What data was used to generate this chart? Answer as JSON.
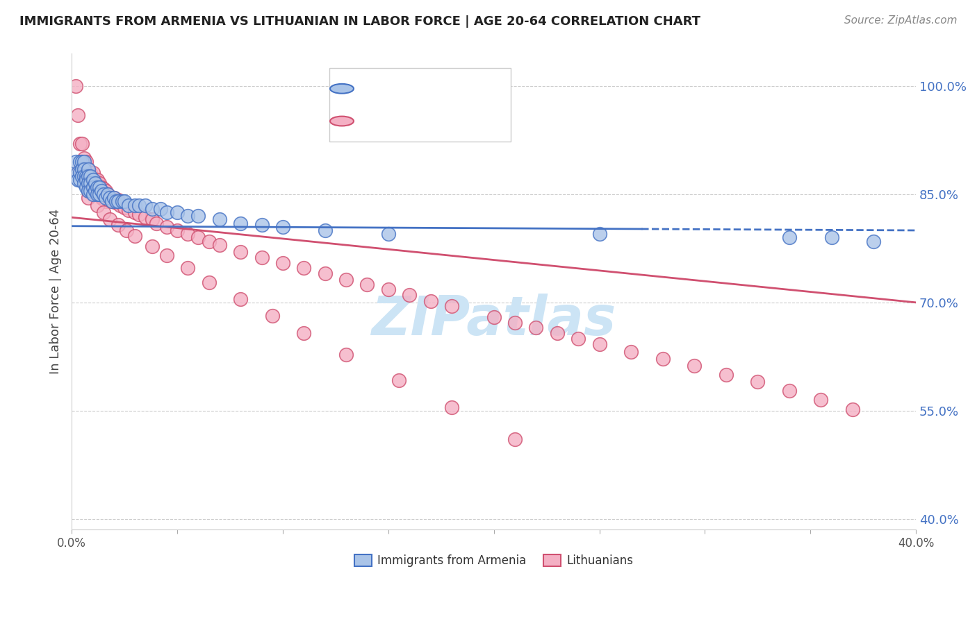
{
  "title": "IMMIGRANTS FROM ARMENIA VS LITHUANIAN IN LABOR FORCE | AGE 20-64 CORRELATION CHART",
  "source": "Source: ZipAtlas.com",
  "ylabel": "In Labor Force | Age 20-64",
  "xlim": [
    0.0,
    0.4
  ],
  "ylim": [
    0.385,
    1.045
  ],
  "xticks": [
    0.0,
    0.05,
    0.1,
    0.15,
    0.2,
    0.25,
    0.3,
    0.35,
    0.4
  ],
  "ytick_right": [
    0.4,
    0.55,
    0.7,
    0.85,
    1.0
  ],
  "ytick_right_labels": [
    "40.0%",
    "55.0%",
    "70.0%",
    "85.0%",
    "100.0%"
  ],
  "color_armenia": "#aac4e8",
  "color_lithuanian": "#f4b0c4",
  "color_armenia_line": "#4472c4",
  "color_lithuanian_line": "#d05070",
  "color_axis_right": "#4472c4",
  "watermark_text": "ZIPatlas",
  "watermark_color": "#cce4f5",
  "armenia_x": [
    0.002,
    0.003,
    0.003,
    0.004,
    0.004,
    0.004,
    0.005,
    0.005,
    0.005,
    0.006,
    0.006,
    0.006,
    0.006,
    0.007,
    0.007,
    0.007,
    0.008,
    0.008,
    0.008,
    0.008,
    0.009,
    0.009,
    0.009,
    0.01,
    0.01,
    0.01,
    0.011,
    0.011,
    0.012,
    0.012,
    0.013,
    0.013,
    0.014,
    0.015,
    0.016,
    0.017,
    0.018,
    0.019,
    0.02,
    0.021,
    0.022,
    0.024,
    0.025,
    0.027,
    0.03,
    0.032,
    0.035,
    0.038,
    0.042,
    0.045,
    0.05,
    0.055,
    0.06,
    0.07,
    0.08,
    0.09,
    0.1,
    0.12,
    0.15,
    0.25,
    0.34,
    0.36,
    0.38
  ],
  "armenia_y": [
    0.895,
    0.88,
    0.87,
    0.895,
    0.88,
    0.87,
    0.895,
    0.885,
    0.875,
    0.895,
    0.885,
    0.875,
    0.865,
    0.875,
    0.87,
    0.86,
    0.885,
    0.875,
    0.865,
    0.855,
    0.875,
    0.865,
    0.855,
    0.87,
    0.86,
    0.85,
    0.865,
    0.855,
    0.86,
    0.85,
    0.86,
    0.85,
    0.855,
    0.85,
    0.845,
    0.85,
    0.845,
    0.84,
    0.845,
    0.84,
    0.84,
    0.84,
    0.84,
    0.835,
    0.835,
    0.835,
    0.835,
    0.83,
    0.83,
    0.825,
    0.825,
    0.82,
    0.82,
    0.815,
    0.81,
    0.808,
    0.805,
    0.8,
    0.795,
    0.795,
    0.79,
    0.79,
    0.785
  ],
  "lithuanian_x": [
    0.002,
    0.003,
    0.004,
    0.004,
    0.005,
    0.005,
    0.006,
    0.006,
    0.006,
    0.007,
    0.007,
    0.007,
    0.008,
    0.008,
    0.008,
    0.009,
    0.009,
    0.01,
    0.01,
    0.01,
    0.011,
    0.011,
    0.012,
    0.012,
    0.013,
    0.013,
    0.014,
    0.014,
    0.015,
    0.015,
    0.016,
    0.016,
    0.017,
    0.018,
    0.019,
    0.02,
    0.021,
    0.022,
    0.023,
    0.025,
    0.027,
    0.03,
    0.032,
    0.035,
    0.038,
    0.04,
    0.045,
    0.05,
    0.055,
    0.06,
    0.065,
    0.07,
    0.08,
    0.09,
    0.1,
    0.11,
    0.12,
    0.13,
    0.14,
    0.15,
    0.16,
    0.17,
    0.18,
    0.2,
    0.21,
    0.22,
    0.23,
    0.24,
    0.25,
    0.265,
    0.28,
    0.295,
    0.31,
    0.325,
    0.34,
    0.355,
    0.37,
    0.008,
    0.012,
    0.015,
    0.018,
    0.022,
    0.026,
    0.03,
    0.038,
    0.045,
    0.055,
    0.065,
    0.08,
    0.095,
    0.11,
    0.13,
    0.155,
    0.18,
    0.21
  ],
  "lithuanian_y": [
    1.0,
    0.96,
    0.92,
    0.885,
    0.92,
    0.88,
    0.9,
    0.885,
    0.87,
    0.895,
    0.88,
    0.865,
    0.885,
    0.87,
    0.855,
    0.88,
    0.865,
    0.88,
    0.865,
    0.85,
    0.87,
    0.855,
    0.87,
    0.855,
    0.865,
    0.85,
    0.86,
    0.845,
    0.858,
    0.843,
    0.855,
    0.84,
    0.85,
    0.845,
    0.84,
    0.845,
    0.838,
    0.842,
    0.835,
    0.832,
    0.828,
    0.825,
    0.822,
    0.818,
    0.815,
    0.81,
    0.805,
    0.8,
    0.795,
    0.79,
    0.785,
    0.78,
    0.77,
    0.762,
    0.755,
    0.748,
    0.74,
    0.732,
    0.725,
    0.718,
    0.71,
    0.702,
    0.695,
    0.68,
    0.672,
    0.665,
    0.658,
    0.65,
    0.642,
    0.632,
    0.622,
    0.612,
    0.6,
    0.59,
    0.578,
    0.565,
    0.552,
    0.845,
    0.835,
    0.825,
    0.815,
    0.808,
    0.8,
    0.792,
    0.778,
    0.765,
    0.748,
    0.728,
    0.705,
    0.682,
    0.658,
    0.628,
    0.592,
    0.555,
    0.51
  ]
}
